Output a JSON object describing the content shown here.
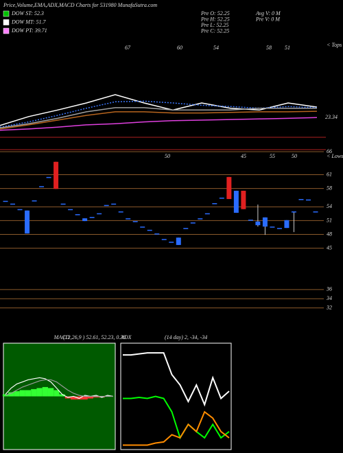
{
  "header": {
    "title": "Price,Volume,EMA,ADX,MACD Charts for 531980 MunafaSutra.com",
    "legend": [
      {
        "label": "DOW ST: 52.3",
        "color": "#00c000"
      },
      {
        "label": "DOW MT: 51.7",
        "color": "#ffffff"
      },
      {
        "label": "DOW PT: 39.71",
        "color": "#ff80ff"
      }
    ],
    "stats_left": [
      "Pre  O: 52.25",
      "Pre  H: 52.25",
      "Pre  L: 52.25",
      "Pre  C: 52.25"
    ],
    "stats_right": [
      "Avg V: 0  M",
      "Pre  V: 0  M"
    ]
  },
  "chart_data": [
    {
      "type": "line",
      "peak_labels": [
        67,
        60,
        54,
        58,
        51
      ],
      "tops_label": "< Tops",
      "ylim": [
        20,
        36
      ],
      "series": [
        {
          "color": "#ffffff",
          "values": [
            22.0,
            23.5,
            24.6,
            25.8,
            27.2,
            25.8,
            24.6,
            25.8,
            24.9,
            24.6,
            25.8,
            25.1
          ]
        },
        {
          "color": "#3c78ff",
          "dash": true,
          "values": [
            21.7,
            22.6,
            23.7,
            24.9,
            26.0,
            26.1,
            25.8,
            25.4,
            25.2,
            24.9,
            25.2,
            25.0
          ]
        },
        {
          "color": "#e040e0",
          "values": [
            21.2,
            21.4,
            21.7,
            22.1,
            22.3,
            22.6,
            22.8,
            22.9,
            23.0,
            23.1,
            23.2,
            23.34
          ]
        },
        {
          "color": "#b8651e",
          "values": [
            21.4,
            22.1,
            22.9,
            23.7,
            24.3,
            24.3,
            24.1,
            24.1,
            24.2,
            24.3,
            24.3,
            24.4
          ]
        },
        {
          "color": "#a0a0a0",
          "values": [
            21.6,
            22.3,
            23.2,
            24.3,
            25.0,
            25.0,
            24.6,
            24.6,
            24.6,
            24.9,
            24.9,
            24.9
          ]
        }
      ]
    },
    {
      "type": "candlestick",
      "lows_label": "< Lows",
      "annotations": [
        50,
        45,
        55,
        50
      ],
      "up_color": "#2a6cff",
      "down_color": "#e02020",
      "grid_color": "#8b5a2b",
      "ylim": [
        30.3,
        66.9
      ],
      "yticks": [
        66,
        61,
        58,
        54,
        51,
        48,
        45,
        36,
        34,
        32
      ],
      "open": [
        55.3,
        54.7,
        53.5,
        48.2,
        55.4,
        58.5,
        60.5,
        63.8,
        54.7,
        53.5,
        52.4,
        50.9,
        51.8,
        52.6,
        54.4,
        54.7,
        53.0,
        51.5,
        50.9,
        49.7,
        49.0,
        48.2,
        47.0,
        46.4,
        45.7,
        49.4,
        50.6,
        51.5,
        52.6,
        54.8,
        56.0,
        60.5,
        52.7,
        57.5,
        51.2,
        50.0,
        49.7,
        49.7,
        49.4,
        49.4,
        53.0,
        55.7,
        55.6,
        53.0
      ],
      "high": [
        55.3,
        54.7,
        53.5,
        53.2,
        55.4,
        58.5,
        60.5,
        63.8,
        54.7,
        53.5,
        52.4,
        51.5,
        51.8,
        52.6,
        54.4,
        54.7,
        53.0,
        51.5,
        50.9,
        49.7,
        49.0,
        48.2,
        47.0,
        46.4,
        47.3,
        49.4,
        50.6,
        51.5,
        52.6,
        54.8,
        56.0,
        60.5,
        57.5,
        57.5,
        51.2,
        54.5,
        51.7,
        49.7,
        49.4,
        51.1,
        53.0,
        55.7,
        55.6,
        53.0
      ],
      "low": [
        55.3,
        54.7,
        53.5,
        48.2,
        55.4,
        58.5,
        60.5,
        57.9,
        54.7,
        53.5,
        52.4,
        50.9,
        51.8,
        52.6,
        54.4,
        54.7,
        53.0,
        51.5,
        50.9,
        49.7,
        49.0,
        48.2,
        47.0,
        46.4,
        45.7,
        49.4,
        50.6,
        51.5,
        52.6,
        54.8,
        56.0,
        55.7,
        52.7,
        53.5,
        51.2,
        49.7,
        47.9,
        49.7,
        49.4,
        49.4,
        48.5,
        55.7,
        55.6,
        53.0
      ],
      "close": [
        55.3,
        54.7,
        53.5,
        53.2,
        55.4,
        58.5,
        60.5,
        57.9,
        54.7,
        53.5,
        52.4,
        51.5,
        51.8,
        52.6,
        54.4,
        54.7,
        53.0,
        51.5,
        50.9,
        49.7,
        49.0,
        48.2,
        47.0,
        46.4,
        47.3,
        49.4,
        50.6,
        51.5,
        52.6,
        54.8,
        56.0,
        55.7,
        57.5,
        53.5,
        51.2,
        50.8,
        51.7,
        49.7,
        49.4,
        51.1,
        53.0,
        55.7,
        55.6,
        53.0
      ]
    },
    {
      "type": "macd",
      "title": "MACD",
      "params": "(12,26,9 ) 52.61, 52.23, 0.38",
      "ylim": [
        -5,
        5
      ],
      "background": "#005a00",
      "hist_up_color": "#33ff33",
      "hist_down_color": "#ff3333",
      "histogram": [
        0.2,
        0.4,
        0.5,
        0.6,
        0.6,
        0.7,
        0.8,
        0.9,
        0.8,
        0.6,
        0.2,
        -0.2,
        -0.3,
        -0.3,
        -0.3,
        -0.2,
        -0.1,
        -0.1,
        0,
        0
      ],
      "series": [
        {
          "color": "#ffffff",
          "values": [
            0.2,
            0.8,
            1.2,
            1.4,
            1.6,
            1.7,
            1.8,
            1.7,
            1.4,
            0.8,
            0.2,
            -0.1,
            0,
            -0.2,
            0.1,
            0,
            0.1,
            -0.1,
            0.1,
            0
          ]
        },
        {
          "color": "#9a9a9a",
          "values": [
            0.1,
            0.3,
            0.6,
            0.9,
            1.1,
            1.3,
            1.5,
            1.6,
            1.6,
            1.4,
            1.0,
            0.6,
            0.3,
            0.1,
            0,
            0,
            0,
            0,
            0,
            0
          ]
        }
      ]
    },
    {
      "type": "adx",
      "title": "ADX",
      "params": "(14 day) 2, -34, -34",
      "ylim": [
        0,
        100
      ],
      "background": "#000000",
      "series": [
        {
          "color": "#ffffff",
          "values": [
            90,
            90,
            91,
            92,
            92,
            92,
            71,
            61,
            45,
            61,
            42,
            68,
            48,
            55
          ]
        },
        {
          "color": "#00ff00",
          "values": [
            48,
            48,
            49,
            48,
            50,
            48,
            35,
            10,
            23,
            16,
            10,
            23,
            10,
            16
          ]
        },
        {
          "color": "#ff8c00",
          "values": [
            3,
            3,
            3,
            3,
            5,
            6,
            13,
            10,
            23,
            16,
            35,
            29,
            16,
            10
          ]
        }
      ]
    }
  ]
}
